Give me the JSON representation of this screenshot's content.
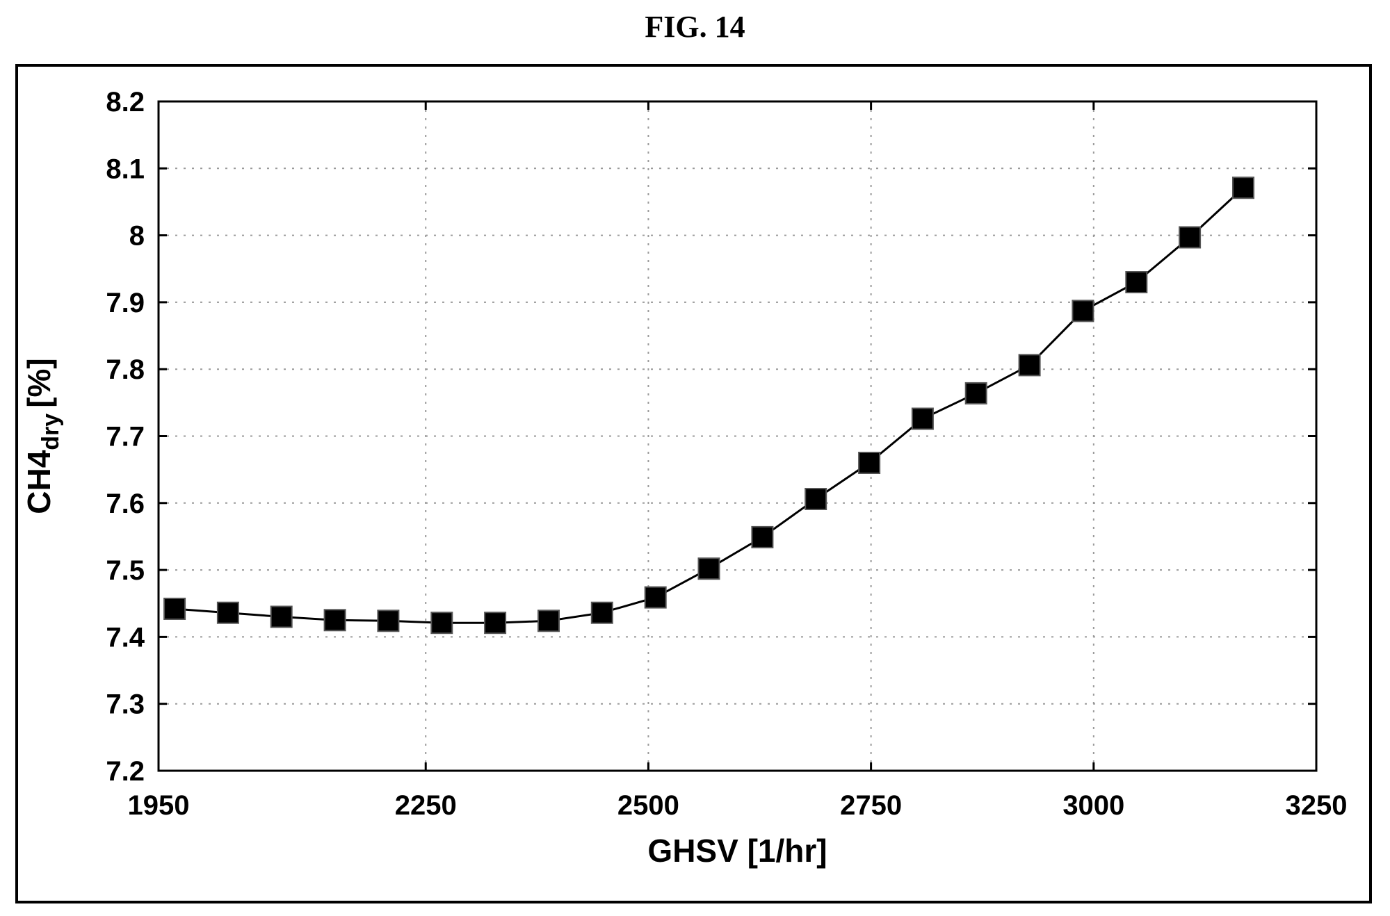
{
  "figure": {
    "title": "FIG. 14"
  },
  "chart_data": {
    "type": "line",
    "title": "",
    "xlabel": "GHSV [1/hr]",
    "ylabel": {
      "main": "CH4",
      "subscript": "dry",
      "unit": "[%]"
    },
    "xlim": [
      1950,
      3250
    ],
    "ylim": [
      7.2,
      8.2
    ],
    "x_ticks": [
      1950,
      2250,
      2500,
      2750,
      3000,
      3250
    ],
    "y_ticks": [
      7.2,
      7.3,
      7.4,
      7.5,
      7.6,
      7.7,
      7.8,
      7.9,
      8,
      8.1,
      8.2
    ],
    "grid": true,
    "marker": "square",
    "colors": {
      "line": "#000000",
      "marker": "#000000",
      "grid": "#9a9a9a"
    },
    "series": [
      {
        "x": [
          1968,
          2028,
          2088,
          2148,
          2208,
          2268,
          2328,
          2388,
          2448,
          2508,
          2568,
          2628,
          2688,
          2748,
          2808,
          2868,
          2928,
          2988,
          3048,
          3108,
          3168
        ],
        "y": [
          7.442,
          7.436,
          7.43,
          7.425,
          7.424,
          7.421,
          7.421,
          7.424,
          7.436,
          7.459,
          7.502,
          7.549,
          7.606,
          7.66,
          7.726,
          7.764,
          7.806,
          7.887,
          7.93,
          7.997,
          8.071
        ]
      }
    ]
  }
}
